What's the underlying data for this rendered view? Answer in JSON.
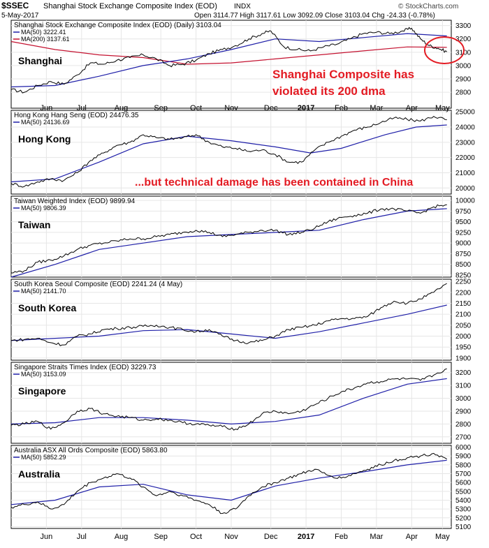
{
  "header": {
    "symbol": "$SSEC",
    "title_line": "Shanghai Stock Exchange Composite Index (EOD)",
    "exchange": "INDX",
    "date": "5-May-2017",
    "ohlc": "Open 3114.77  High 3117.61  Low 3092.09  Close 3103.04  Chg -24.33 (-0.78%)",
    "watermark": "© StockCharts.com"
  },
  "x_axis": {
    "labels": [
      "Jun",
      "Jul",
      "Aug",
      "Sep",
      "Oct",
      "Nov",
      "Dec",
      "2017",
      "Feb",
      "Mar",
      "Apr",
      "May"
    ],
    "label_pos": [
      0.08,
      0.16,
      0.25,
      0.34,
      0.42,
      0.5,
      0.59,
      0.67,
      0.75,
      0.83,
      0.91,
      0.98
    ]
  },
  "colors": {
    "price": "#000000",
    "ma50": "#1f1fa8",
    "ma200": "#c41230",
    "annotation": "#e31b23"
  },
  "annotations": {
    "shanghai_text_1": "Shanghai Composite has",
    "shanghai_text_2": "violated its 200 dma",
    "hk_text": "...but technical damage has been contained in China"
  },
  "chart_data": [
    {
      "type": "line",
      "name_label": "Shanghai",
      "legend_title": "Shanghai Stock Exchange Composite Index (EOD) (Daily) 3103.04",
      "legend_ma50": "MA(50) 3222.41",
      "legend_ma200": "MA(200) 3137.61",
      "ylim": [
        2680,
        3340
      ],
      "yticks": [
        2800,
        2900,
        3000,
        3100,
        3200,
        3300
      ],
      "price_pts": [
        [
          0,
          2820
        ],
        [
          0.03,
          2800
        ],
        [
          0.06,
          2850
        ],
        [
          0.09,
          2880
        ],
        [
          0.12,
          2860
        ],
        [
          0.15,
          2930
        ],
        [
          0.18,
          3020
        ],
        [
          0.21,
          3010
        ],
        [
          0.24,
          3040
        ],
        [
          0.27,
          3060
        ],
        [
          0.3,
          3080
        ],
        [
          0.33,
          3050
        ],
        [
          0.36,
          3000
        ],
        [
          0.39,
          3010
        ],
        [
          0.42,
          3040
        ],
        [
          0.45,
          3090
        ],
        [
          0.48,
          3120
        ],
        [
          0.51,
          3150
        ],
        [
          0.54,
          3200
        ],
        [
          0.57,
          3240
        ],
        [
          0.59,
          3260
        ],
        [
          0.62,
          3140
        ],
        [
          0.65,
          3120
        ],
        [
          0.68,
          3110
        ],
        [
          0.71,
          3140
        ],
        [
          0.74,
          3160
        ],
        [
          0.77,
          3200
        ],
        [
          0.8,
          3240
        ],
        [
          0.83,
          3250
        ],
        [
          0.86,
          3240
        ],
        [
          0.89,
          3260
        ],
        [
          0.91,
          3280
        ],
        [
          0.93,
          3200
        ],
        [
          0.95,
          3150
        ],
        [
          0.97,
          3130
        ],
        [
          0.99,
          3103
        ]
      ],
      "ma50_pts": [
        [
          0,
          2840
        ],
        [
          0.1,
          2850
        ],
        [
          0.2,
          2920
        ],
        [
          0.3,
          3000
        ],
        [
          0.4,
          3050
        ],
        [
          0.5,
          3120
        ],
        [
          0.6,
          3200
        ],
        [
          0.7,
          3180
        ],
        [
          0.8,
          3210
        ],
        [
          0.9,
          3240
        ],
        [
          0.99,
          3222
        ]
      ],
      "ma200_pts": [
        [
          0,
          3180
        ],
        [
          0.1,
          3120
        ],
        [
          0.2,
          3080
        ],
        [
          0.3,
          3060
        ],
        [
          0.4,
          3010
        ],
        [
          0.5,
          3020
        ],
        [
          0.6,
          3050
        ],
        [
          0.7,
          3080
        ],
        [
          0.8,
          3110
        ],
        [
          0.9,
          3140
        ],
        [
          0.99,
          3137
        ]
      ]
    },
    {
      "type": "line",
      "name_label": "Hong Kong",
      "legend_title": "Hong Kong Hang Seng (EOD) 24476.35",
      "legend_ma50": "MA(50) 24136.69",
      "ylim": [
        19600,
        25100
      ],
      "yticks": [
        20000,
        21000,
        22000,
        23000,
        24000,
        25000
      ],
      "price_pts": [
        [
          0,
          20300
        ],
        [
          0.03,
          20100
        ],
        [
          0.06,
          20400
        ],
        [
          0.09,
          20600
        ],
        [
          0.12,
          20500
        ],
        [
          0.15,
          21000
        ],
        [
          0.18,
          21800
        ],
        [
          0.21,
          22300
        ],
        [
          0.24,
          22800
        ],
        [
          0.27,
          23000
        ],
        [
          0.3,
          23500
        ],
        [
          0.33,
          23300
        ],
        [
          0.36,
          23200
        ],
        [
          0.39,
          23300
        ],
        [
          0.42,
          23500
        ],
        [
          0.45,
          23000
        ],
        [
          0.48,
          22700
        ],
        [
          0.51,
          22600
        ],
        [
          0.54,
          22400
        ],
        [
          0.57,
          22500
        ],
        [
          0.6,
          22200
        ],
        [
          0.63,
          21700
        ],
        [
          0.66,
          21700
        ],
        [
          0.69,
          22500
        ],
        [
          0.72,
          23000
        ],
        [
          0.75,
          23400
        ],
        [
          0.78,
          23800
        ],
        [
          0.81,
          24000
        ],
        [
          0.84,
          24300
        ],
        [
          0.87,
          24600
        ],
        [
          0.9,
          24500
        ],
        [
          0.93,
          24400
        ],
        [
          0.96,
          24700
        ],
        [
          0.99,
          24476
        ]
      ],
      "ma50_pts": [
        [
          0,
          20400
        ],
        [
          0.1,
          20600
        ],
        [
          0.2,
          21700
        ],
        [
          0.3,
          22900
        ],
        [
          0.4,
          23400
        ],
        [
          0.5,
          23100
        ],
        [
          0.6,
          22700
        ],
        [
          0.68,
          22300
        ],
        [
          0.75,
          22600
        ],
        [
          0.85,
          23500
        ],
        [
          0.92,
          24000
        ],
        [
          0.99,
          24136
        ]
      ]
    },
    {
      "type": "line",
      "name_label": "Taiwan",
      "legend_title": "Taiwan Weighted Index (EOD) 9899.94",
      "legend_ma50": "MA(50) 9806.39",
      "ylim": [
        8200,
        10100
      ],
      "yticks": [
        8250,
        8500,
        8750,
        9000,
        9250,
        9500,
        9750,
        10000
      ],
      "price_pts": [
        [
          0,
          8300
        ],
        [
          0.03,
          8350
        ],
        [
          0.06,
          8550
        ],
        [
          0.09,
          8600
        ],
        [
          0.12,
          8700
        ],
        [
          0.15,
          8850
        ],
        [
          0.18,
          8950
        ],
        [
          0.21,
          9000
        ],
        [
          0.24,
          9050
        ],
        [
          0.27,
          9100
        ],
        [
          0.3,
          9100
        ],
        [
          0.33,
          9150
        ],
        [
          0.36,
          9200
        ],
        [
          0.39,
          9250
        ],
        [
          0.42,
          9300
        ],
        [
          0.45,
          9250
        ],
        [
          0.48,
          9150
        ],
        [
          0.51,
          9200
        ],
        [
          0.54,
          9250
        ],
        [
          0.57,
          9300
        ],
        [
          0.6,
          9300
        ],
        [
          0.63,
          9200
        ],
        [
          0.66,
          9250
        ],
        [
          0.69,
          9350
        ],
        [
          0.72,
          9500
        ],
        [
          0.75,
          9600
        ],
        [
          0.78,
          9650
        ],
        [
          0.81,
          9700
        ],
        [
          0.84,
          9800
        ],
        [
          0.87,
          9800
        ],
        [
          0.9,
          9750
        ],
        [
          0.93,
          9700
        ],
        [
          0.96,
          9850
        ],
        [
          0.99,
          9900
        ]
      ],
      "ma50_pts": [
        [
          0,
          8200
        ],
        [
          0.1,
          8500
        ],
        [
          0.2,
          8850
        ],
        [
          0.3,
          9000
        ],
        [
          0.4,
          9150
        ],
        [
          0.5,
          9200
        ],
        [
          0.6,
          9250
        ],
        [
          0.7,
          9300
        ],
        [
          0.8,
          9550
        ],
        [
          0.9,
          9750
        ],
        [
          0.99,
          9806
        ]
      ]
    },
    {
      "type": "line",
      "name_label": "South Korea",
      "legend_title": "South Korea Seoul Composite (EOD) 2241.24 (4 May)",
      "legend_ma50": "MA(50) 2141.70",
      "ylim": [
        1890,
        2260
      ],
      "yticks": [
        1900,
        1950,
        2000,
        2050,
        2100,
        2150,
        2200,
        2250
      ],
      "price_pts": [
        [
          0,
          1980
        ],
        [
          0.03,
          1985
        ],
        [
          0.06,
          1990
        ],
        [
          0.09,
          1970
        ],
        [
          0.12,
          1960
        ],
        [
          0.15,
          2000
        ],
        [
          0.18,
          2010
        ],
        [
          0.21,
          2030
        ],
        [
          0.24,
          2035
        ],
        [
          0.27,
          2040
        ],
        [
          0.3,
          2045
        ],
        [
          0.33,
          2050
        ],
        [
          0.36,
          2040
        ],
        [
          0.39,
          2030
        ],
        [
          0.42,
          2020
        ],
        [
          0.45,
          2030
        ],
        [
          0.48,
          2000
        ],
        [
          0.51,
          1980
        ],
        [
          0.54,
          1970
        ],
        [
          0.57,
          1980
        ],
        [
          0.6,
          2000
        ],
        [
          0.63,
          2030
        ],
        [
          0.66,
          2040
        ],
        [
          0.69,
          2050
        ],
        [
          0.72,
          2070
        ],
        [
          0.75,
          2080
        ],
        [
          0.78,
          2080
        ],
        [
          0.81,
          2090
        ],
        [
          0.84,
          2130
        ],
        [
          0.87,
          2160
        ],
        [
          0.9,
          2150
        ],
        [
          0.93,
          2170
        ],
        [
          0.96,
          2200
        ],
        [
          0.99,
          2241
        ]
      ],
      "ma50_pts": [
        [
          0,
          1980
        ],
        [
          0.1,
          1990
        ],
        [
          0.2,
          2000
        ],
        [
          0.3,
          2025
        ],
        [
          0.4,
          2030
        ],
        [
          0.5,
          2010
        ],
        [
          0.6,
          1990
        ],
        [
          0.7,
          2020
        ],
        [
          0.8,
          2060
        ],
        [
          0.9,
          2100
        ],
        [
          0.99,
          2142
        ]
      ]
    },
    {
      "type": "line",
      "name_label": "Singapore",
      "legend_title": "Singapore Straits Times Index (EOD) 3229.73",
      "legend_ma50": "MA(50) 3153.09",
      "ylim": [
        2650,
        3280
      ],
      "yticks": [
        2700,
        2800,
        2900,
        3000,
        3100,
        3200
      ],
      "price_pts": [
        [
          0,
          2790
        ],
        [
          0.03,
          2800
        ],
        [
          0.06,
          2820
        ],
        [
          0.09,
          2760
        ],
        [
          0.12,
          2810
        ],
        [
          0.15,
          2900
        ],
        [
          0.18,
          2920
        ],
        [
          0.21,
          2880
        ],
        [
          0.24,
          2860
        ],
        [
          0.27,
          2850
        ],
        [
          0.3,
          2830
        ],
        [
          0.33,
          2840
        ],
        [
          0.36,
          2830
        ],
        [
          0.39,
          2810
        ],
        [
          0.42,
          2800
        ],
        [
          0.45,
          2790
        ],
        [
          0.48,
          2780
        ],
        [
          0.51,
          2760
        ],
        [
          0.54,
          2800
        ],
        [
          0.57,
          2880
        ],
        [
          0.6,
          2900
        ],
        [
          0.63,
          2880
        ],
        [
          0.66,
          2900
        ],
        [
          0.69,
          2950
        ],
        [
          0.72,
          3000
        ],
        [
          0.75,
          3050
        ],
        [
          0.78,
          3080
        ],
        [
          0.81,
          3120
        ],
        [
          0.84,
          3130
        ],
        [
          0.87,
          3150
        ],
        [
          0.9,
          3150
        ],
        [
          0.93,
          3140
        ],
        [
          0.96,
          3180
        ],
        [
          0.99,
          3230
        ]
      ],
      "ma50_pts": [
        [
          0,
          2800
        ],
        [
          0.1,
          2810
        ],
        [
          0.2,
          2850
        ],
        [
          0.3,
          2850
        ],
        [
          0.4,
          2830
        ],
        [
          0.5,
          2800
        ],
        [
          0.6,
          2820
        ],
        [
          0.7,
          2870
        ],
        [
          0.8,
          3000
        ],
        [
          0.9,
          3110
        ],
        [
          0.99,
          3153
        ]
      ]
    },
    {
      "type": "line",
      "name_label": "Australia",
      "legend_title": "Australia ASX All Ords Composite (EOD) 5863.80",
      "legend_ma50": "MA(50) 5852.29",
      "ylim": [
        5080,
        6020
      ],
      "yticks": [
        5100,
        5200,
        5300,
        5400,
        5500,
        5600,
        5700,
        5800,
        5900,
        6000
      ],
      "price_pts": [
        [
          0,
          5320
        ],
        [
          0.03,
          5350
        ],
        [
          0.06,
          5380
        ],
        [
          0.09,
          5300
        ],
        [
          0.12,
          5350
        ],
        [
          0.15,
          5500
        ],
        [
          0.18,
          5600
        ],
        [
          0.21,
          5650
        ],
        [
          0.24,
          5700
        ],
        [
          0.27,
          5650
        ],
        [
          0.3,
          5550
        ],
        [
          0.33,
          5450
        ],
        [
          0.36,
          5500
        ],
        [
          0.39,
          5450
        ],
        [
          0.42,
          5400
        ],
        [
          0.45,
          5350
        ],
        [
          0.48,
          5250
        ],
        [
          0.51,
          5300
        ],
        [
          0.54,
          5450
        ],
        [
          0.57,
          5550
        ],
        [
          0.6,
          5600
        ],
        [
          0.63,
          5650
        ],
        [
          0.66,
          5700
        ],
        [
          0.69,
          5750
        ],
        [
          0.72,
          5680
        ],
        [
          0.75,
          5650
        ],
        [
          0.78,
          5700
        ],
        [
          0.81,
          5750
        ],
        [
          0.84,
          5800
        ],
        [
          0.87,
          5850
        ],
        [
          0.9,
          5880
        ],
        [
          0.93,
          5900
        ],
        [
          0.96,
          5930
        ],
        [
          0.99,
          5864
        ]
      ],
      "ma50_pts": [
        [
          0,
          5350
        ],
        [
          0.1,
          5400
        ],
        [
          0.2,
          5550
        ],
        [
          0.3,
          5580
        ],
        [
          0.4,
          5460
        ],
        [
          0.5,
          5400
        ],
        [
          0.6,
          5560
        ],
        [
          0.7,
          5650
        ],
        [
          0.8,
          5720
        ],
        [
          0.9,
          5800
        ],
        [
          0.99,
          5852
        ]
      ]
    }
  ]
}
